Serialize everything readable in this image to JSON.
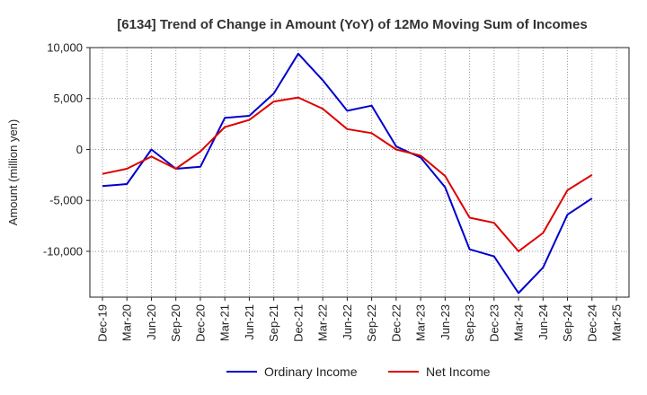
{
  "chart_data": {
    "type": "line",
    "title": "[6134]  Trend of Change in Amount (YoY) of 12Mo Moving Sum of Incomes",
    "xlabel": "",
    "ylabel": "Amount (million yen)",
    "ylim": [
      -14500,
      10000
    ],
    "yticks": [
      10000,
      5000,
      0,
      -5000,
      -10000
    ],
    "ytick_labels": [
      "10,000",
      "5,000",
      "0",
      "-5,000",
      "-10,000"
    ],
    "categories": [
      "Dec-19",
      "Mar-20",
      "Jun-20",
      "Sep-20",
      "Dec-20",
      "Mar-21",
      "Jun-21",
      "Sep-21",
      "Dec-21",
      "Mar-22",
      "Jun-22",
      "Sep-22",
      "Dec-22",
      "Mar-23",
      "Jun-23",
      "Sep-23",
      "Dec-23",
      "Mar-24",
      "Jun-24",
      "Sep-24",
      "Dec-24",
      "Mar-25"
    ],
    "series": [
      {
        "name": "Ordinary Income",
        "color": "#0000cc",
        "values": [
          -3600,
          -3400,
          0,
          -1900,
          -1700,
          3100,
          3300,
          5500,
          9400,
          6800,
          3800,
          4300,
          300,
          -800,
          -3700,
          -9800,
          -10500,
          -14100,
          -11600,
          -6400,
          -4800,
          null
        ]
      },
      {
        "name": "Net Income",
        "color": "#dd0000",
        "values": [
          -2400,
          -1900,
          -700,
          -1900,
          -200,
          2200,
          2900,
          4700,
          5100,
          4000,
          2000,
          1600,
          0,
          -600,
          -2600,
          -6700,
          -7200,
          -10000,
          -8200,
          -4000,
          -2500,
          null
        ]
      }
    ],
    "grid": true,
    "legend": "bottom-center"
  }
}
